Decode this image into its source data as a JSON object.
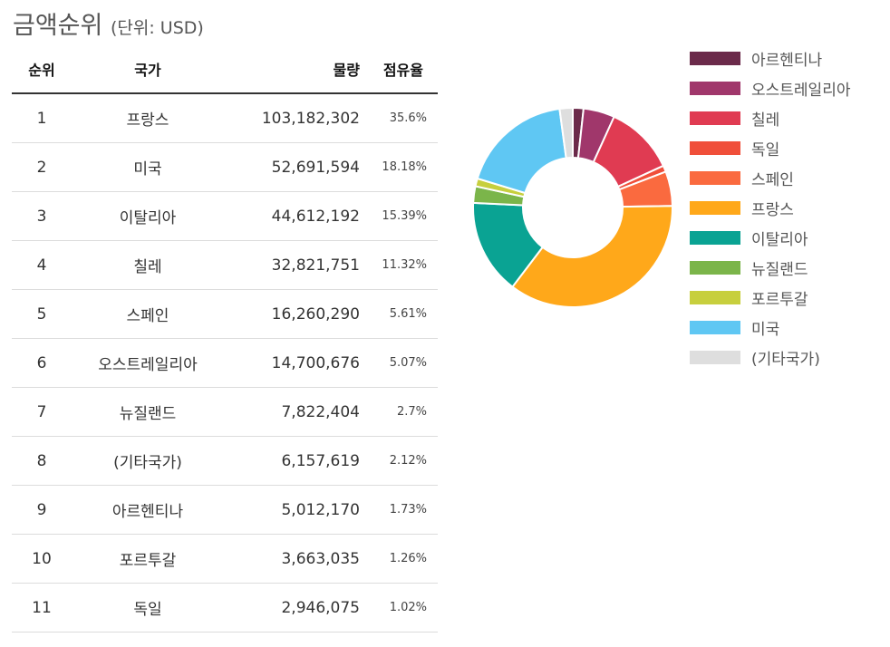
{
  "header": {
    "title": "금액순위",
    "unit": "(단위: USD)"
  },
  "table": {
    "columns": [
      "순위",
      "국가",
      "물량",
      "점유율"
    ],
    "rows": [
      [
        "1",
        "프랑스",
        "103,182,302",
        "35.6%"
      ],
      [
        "2",
        "미국",
        "52,691,594",
        "18.18%"
      ],
      [
        "3",
        "이탈리아",
        "44,612,192",
        "15.39%"
      ],
      [
        "4",
        "칠레",
        "32,821,751",
        "11.32%"
      ],
      [
        "5",
        "스페인",
        "16,260,290",
        "5.61%"
      ],
      [
        "6",
        "오스트레일리아",
        "14,700,676",
        "5.07%"
      ],
      [
        "7",
        "뉴질랜드",
        "7,822,404",
        "2.7%"
      ],
      [
        "8",
        "(기타국가)",
        "6,157,619",
        "2.12%"
      ],
      [
        "9",
        "아르헨티나",
        "5,012,170",
        "1.73%"
      ],
      [
        "10",
        "포르투갈",
        "3,663,035",
        "1.26%"
      ],
      [
        "11",
        "독일",
        "2,946,075",
        "1.02%"
      ]
    ]
  },
  "chart_data": {
    "type": "pie",
    "variant": "donut",
    "title": "금액순위",
    "unit": "USD",
    "legend_position": "right",
    "slices": [
      {
        "label": "아르헨티나",
        "value": 5012170,
        "color": "#6b2a4a"
      },
      {
        "label": "오스트레일리아",
        "value": 14700676,
        "color": "#a0376b"
      },
      {
        "label": "칠레",
        "value": 32821751,
        "color": "#e03b52"
      },
      {
        "label": "독일",
        "value": 2946075,
        "color": "#f04f3a"
      },
      {
        "label": "스페인",
        "value": 16260290,
        "color": "#fa6a3f"
      },
      {
        "label": "프랑스",
        "value": 103182302,
        "color": "#ffa81a"
      },
      {
        "label": "이탈리아",
        "value": 44612192,
        "color": "#0aa393"
      },
      {
        "label": "뉴질랜드",
        "value": 7822404,
        "color": "#7bb54a"
      },
      {
        "label": "포르투갈",
        "value": 3663035,
        "color": "#c7cf3e"
      },
      {
        "label": "미국",
        "value": 52691594,
        "color": "#5fc7f3"
      },
      {
        "label": "(기타국가)",
        "value": 6157619,
        "color": "#dedede"
      }
    ]
  }
}
